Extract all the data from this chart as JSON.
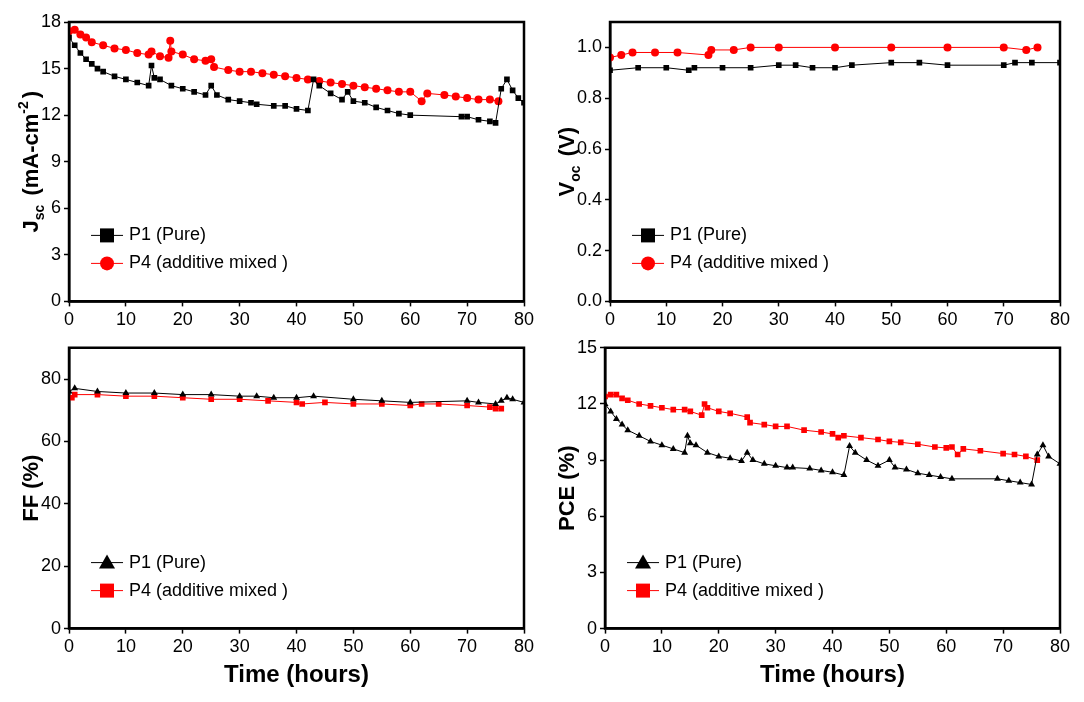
{
  "chart_data": [
    {
      "type": "line",
      "ylabel": "J$_{sc}$ (mA-cm$^{-2}$)",
      "xlim": [
        0,
        80
      ],
      "xticks": [
        0,
        10,
        20,
        30,
        40,
        50,
        60,
        70,
        80
      ],
      "ylim": [
        0,
        18
      ],
      "yticks": [
        0,
        3,
        6,
        9,
        12,
        15,
        18
      ],
      "legend": "bottom left",
      "series": [
        {
          "name": "P1 (Pure)",
          "color": "#000000",
          "marker": "square",
          "x": [
            0,
            1,
            2,
            3,
            4,
            5,
            6,
            8,
            10,
            12,
            14,
            14.5,
            15,
            16,
            18,
            20,
            22,
            24,
            25,
            26,
            28,
            30,
            32,
            33,
            36,
            38,
            40,
            42,
            43,
            44,
            46,
            48,
            49,
            50,
            52,
            54,
            56,
            58,
            60,
            69,
            70,
            72,
            74,
            75,
            76,
            77,
            78,
            79,
            80
          ],
          "values": [
            17.0,
            16.5,
            16.0,
            15.6,
            15.3,
            15.0,
            14.8,
            14.5,
            14.3,
            14.1,
            13.9,
            15.2,
            14.4,
            14.3,
            13.9,
            13.7,
            13.5,
            13.3,
            13.9,
            13.3,
            13.0,
            12.9,
            12.8,
            12.7,
            12.6,
            12.6,
            12.4,
            12.3,
            14.3,
            13.9,
            13.4,
            13.0,
            13.5,
            12.9,
            12.8,
            12.5,
            12.3,
            12.1,
            12.0,
            11.9,
            11.9,
            11.7,
            11.6,
            11.5,
            13.7,
            14.3,
            13.6,
            13.1,
            12.8
          ]
        },
        {
          "name": "P4 (additive mixed )",
          "color": "#ff0000",
          "marker": "circle",
          "x": [
            0,
            1,
            2,
            3,
            4,
            6,
            8,
            10,
            12,
            14,
            14.5,
            16,
            17.5,
            17.8,
            18,
            20,
            22,
            24,
            25,
            25.5,
            28,
            30,
            32,
            34,
            36,
            38,
            40,
            42,
            44,
            46,
            48,
            50,
            52,
            54,
            56,
            58,
            60,
            62,
            63,
            66,
            68,
            70,
            72,
            74,
            75.5
          ],
          "values": [
            17.4,
            17.5,
            17.2,
            17.0,
            16.7,
            16.5,
            16.3,
            16.2,
            16.0,
            15.9,
            16.1,
            15.8,
            15.7,
            16.8,
            16.1,
            15.9,
            15.6,
            15.5,
            15.6,
            15.1,
            14.9,
            14.8,
            14.8,
            14.7,
            14.6,
            14.5,
            14.4,
            14.3,
            14.2,
            14.1,
            14.0,
            13.9,
            13.8,
            13.7,
            13.6,
            13.5,
            13.5,
            12.9,
            13.4,
            13.3,
            13.2,
            13.1,
            13.0,
            13.0,
            12.9
          ]
        }
      ]
    },
    {
      "type": "line",
      "ylabel": "V$_{oc}$ (V)",
      "xlim": [
        0,
        80
      ],
      "xticks": [
        0,
        10,
        20,
        30,
        40,
        50,
        60,
        70,
        80
      ],
      "ylim": [
        0,
        1.1
      ],
      "yticks": [
        {
          "value": 0,
          "label": "0.0"
        },
        0.2,
        0.4,
        0.6,
        0.8,
        {
          "value": 1,
          "label": "1.0"
        }
      ],
      "legend": "bottom left",
      "series": [
        {
          "name": "P1 (Pure)",
          "color": "#000000",
          "marker": "square",
          "x": [
            0,
            5,
            10,
            14,
            15,
            20,
            25,
            30,
            33,
            36,
            40,
            43,
            50,
            55,
            60,
            70,
            72,
            75,
            80
          ],
          "values": [
            0.91,
            0.92,
            0.92,
            0.91,
            0.92,
            0.92,
            0.92,
            0.93,
            0.93,
            0.92,
            0.92,
            0.93,
            0.94,
            0.94,
            0.93,
            0.93,
            0.94,
            0.94,
            0.94
          ]
        },
        {
          "name": "P4 (additive mixed )",
          "color": "#ff0000",
          "marker": "circle",
          "x": [
            0,
            2,
            4,
            8,
            12,
            17.5,
            18,
            22,
            25,
            30,
            40,
            50,
            60,
            70,
            74,
            76
          ],
          "values": [
            0.96,
            0.97,
            0.98,
            0.98,
            0.98,
            0.97,
            0.99,
            0.99,
            1.0,
            1.0,
            1.0,
            1.0,
            1.0,
            1.0,
            0.99,
            1.0
          ]
        }
      ]
    },
    {
      "type": "line",
      "xlabel": "Time (hours)",
      "ylabel": "FF (%)",
      "xlim": [
        0,
        80
      ],
      "xticks": [
        0,
        10,
        20,
        30,
        40,
        50,
        60,
        70,
        80
      ],
      "ylim": [
        0,
        90
      ],
      "yticks": [
        0,
        20,
        40,
        60,
        80
      ],
      "legend": "bottom left",
      "series": [
        {
          "name": "P1 (Pure)",
          "color": "#000000",
          "marker": "triangle",
          "x": [
            0,
            1,
            5,
            10,
            15,
            20,
            25,
            30,
            33,
            36,
            40,
            43,
            50,
            55,
            60,
            70,
            72,
            75,
            76,
            77,
            78,
            80
          ],
          "values": [
            76,
            77,
            76,
            75.5,
            75.5,
            75,
            75,
            74.5,
            74.5,
            74,
            74,
            74.5,
            73.5,
            73,
            72.5,
            73,
            72.5,
            72,
            73,
            74,
            73.5,
            72.5
          ]
        },
        {
          "name": "P4 (additive mixed )",
          "color": "#ff0000",
          "marker": "square",
          "x": [
            0.5,
            1,
            5,
            10,
            15,
            20,
            25,
            30,
            35,
            40,
            41,
            45,
            50,
            55,
            60,
            62,
            65,
            70,
            74,
            75,
            76
          ],
          "values": [
            74,
            75,
            75,
            74.5,
            74.5,
            74,
            73.5,
            73.5,
            73,
            72.5,
            72,
            72.5,
            72,
            72,
            71.5,
            72,
            72,
            71.5,
            71,
            70.5,
            70.5
          ]
        }
      ]
    },
    {
      "type": "line",
      "xlabel": "Time (hours)",
      "ylabel": "PCE (%)",
      "xlim": [
        0,
        80
      ],
      "xticks": [
        0,
        10,
        20,
        30,
        40,
        50,
        60,
        70,
        80
      ],
      "ylim": [
        0,
        15
      ],
      "yticks": [
        0,
        3,
        6,
        9,
        12,
        15
      ],
      "legend": "bottom left",
      "series": [
        {
          "name": "P1 (Pure)",
          "color": "#000000",
          "marker": "triangle",
          "x": [
            0,
            1,
            2,
            3,
            4,
            6,
            8,
            10,
            12,
            14,
            14.5,
            15,
            16,
            18,
            20,
            22,
            24,
            25,
            26,
            28,
            30,
            32,
            33,
            36,
            38,
            40,
            42,
            43,
            44,
            46,
            48,
            50,
            51,
            53,
            55,
            57,
            59,
            61,
            69,
            71,
            73,
            75,
            76,
            77,
            78,
            80
          ],
          "values": [
            12.0,
            11.6,
            11.2,
            10.9,
            10.6,
            10.3,
            10.0,
            9.8,
            9.6,
            9.4,
            10.3,
            9.9,
            9.8,
            9.4,
            9.2,
            9.1,
            8.95,
            9.4,
            9.0,
            8.8,
            8.7,
            8.6,
            8.6,
            8.55,
            8.45,
            8.35,
            8.2,
            9.75,
            9.4,
            9.0,
            8.7,
            9.0,
            8.6,
            8.5,
            8.3,
            8.2,
            8.1,
            8.0,
            8.0,
            7.9,
            7.8,
            7.7,
            9.3,
            9.8,
            9.2,
            8.8
          ]
        },
        {
          "name": "P4 (additive mixed )",
          "color": "#ff0000",
          "marker": "square",
          "x": [
            0,
            1,
            2,
            3,
            4,
            6,
            8,
            10,
            12,
            14,
            15,
            17,
            17.5,
            18,
            20,
            22,
            25,
            25.5,
            28,
            30,
            32,
            35,
            38,
            40,
            41,
            42,
            45,
            48,
            50,
            52,
            55,
            58,
            60,
            61,
            62,
            63,
            66,
            70,
            72,
            74,
            76
          ],
          "values": [
            12.4,
            12.5,
            12.5,
            12.3,
            12.2,
            12.0,
            11.9,
            11.8,
            11.7,
            11.7,
            11.6,
            11.4,
            12.0,
            11.8,
            11.6,
            11.5,
            11.3,
            11.0,
            10.9,
            10.8,
            10.8,
            10.6,
            10.5,
            10.4,
            10.2,
            10.3,
            10.2,
            10.1,
            10.0,
            9.95,
            9.85,
            9.7,
            9.65,
            9.7,
            9.3,
            9.6,
            9.5,
            9.35,
            9.3,
            9.2,
            9.0
          ]
        }
      ]
    }
  ]
}
